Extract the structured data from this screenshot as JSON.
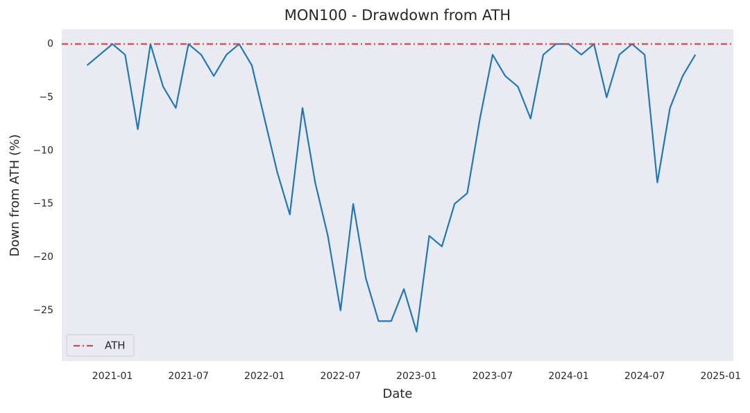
{
  "chart_data": {
    "type": "line",
    "title": "MON100 - Drawdown from ATH",
    "x_label": "Date",
    "y_label": "Down from ATH (%)",
    "x": [
      "2020-11",
      "2020-12",
      "2021-01",
      "2021-02",
      "2021-03",
      "2021-04",
      "2021-05",
      "2021-06",
      "2021-07",
      "2021-08",
      "2021-09",
      "2021-10",
      "2021-11",
      "2021-12",
      "2022-01",
      "2022-02",
      "2022-03",
      "2022-04",
      "2022-05",
      "2022-06",
      "2022-07",
      "2022-08",
      "2022-09",
      "2022-10",
      "2022-11",
      "2022-12",
      "2023-01",
      "2023-02",
      "2023-03",
      "2023-04",
      "2023-05",
      "2023-06",
      "2023-07",
      "2023-08",
      "2023-09",
      "2023-10",
      "2023-11",
      "2023-12",
      "2024-01",
      "2024-02",
      "2024-03",
      "2024-04",
      "2024-05",
      "2024-06",
      "2024-07",
      "2024-08",
      "2024-09",
      "2024-10",
      "2024-11"
    ],
    "series": [
      {
        "name": "Drawdown",
        "color": "#1f77b4",
        "values": [
          -2,
          -1,
          0,
          -1,
          -8,
          0,
          -4,
          -6,
          0,
          -1,
          -3,
          -1,
          0,
          -2,
          -7,
          -12,
          -16,
          -6,
          -13,
          -18,
          -25,
          -15,
          -22,
          -26,
          -26,
          -23,
          -27,
          -18,
          -19,
          -15,
          -14,
          -7,
          -1,
          -3,
          -4,
          -7,
          -1,
          0,
          0,
          -1,
          0,
          -5,
          -1,
          0,
          -1,
          -13,
          -6,
          -3,
          -1
        ]
      }
    ],
    "reference_line": {
      "name": "ATH",
      "value": 0,
      "color": "#c44e52",
      "style": "dash-dot"
    },
    "xlim": [
      "2020-09",
      "2025-02"
    ],
    "xticks": [
      "2021-01",
      "2021-07",
      "2022-01",
      "2022-07",
      "2023-01",
      "2023-07",
      "2024-01",
      "2024-07",
      "2025-01"
    ],
    "ylim": [
      -29.75,
      1.4
    ],
    "yticks": [
      0,
      {
        "value": -5,
        "label": "−5"
      },
      {
        "value": -10,
        "label": "−10"
      },
      {
        "value": -15,
        "label": "−15"
      },
      {
        "value": -20,
        "label": "−20"
      },
      {
        "value": -25,
        "label": "−25"
      }
    ],
    "grid": false,
    "background": "#eaeaf2",
    "legend": "lower left"
  }
}
